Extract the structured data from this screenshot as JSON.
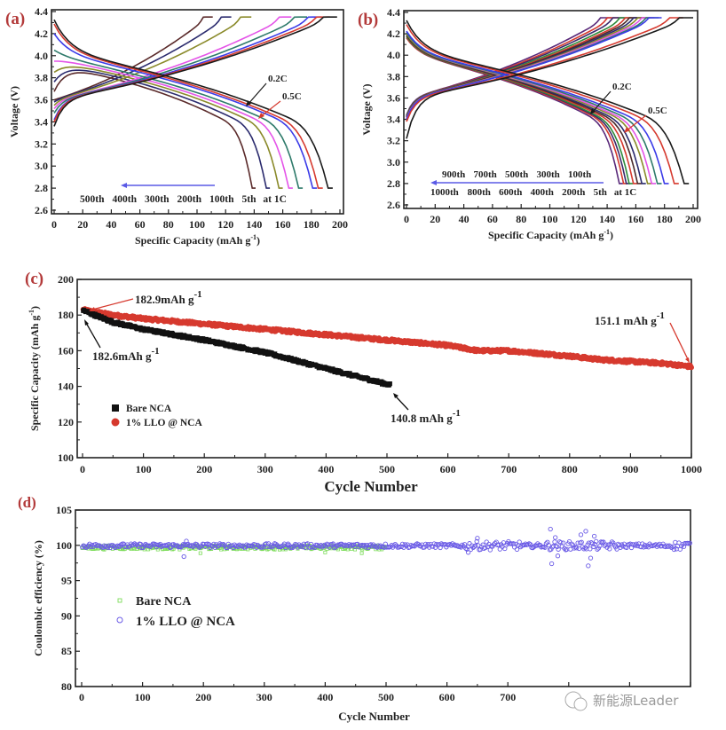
{
  "chart_data": [
    {
      "id": "a",
      "panel_label": "(a)",
      "type": "line",
      "xlabel": "Specific Capacity (mAh g",
      "xlabel_sup": "-1",
      "xlabel_end": ")",
      "ylabel": "Voltage (V)",
      "xlim": [
        0,
        200
      ],
      "ylim": [
        2.6,
        4.4
      ],
      "xticks": [
        0,
        20,
        40,
        60,
        80,
        100,
        120,
        140,
        160,
        180,
        200
      ],
      "yticks": [
        2.6,
        2.8,
        3.0,
        3.2,
        3.4,
        3.6,
        3.8,
        4.0,
        4.2,
        4.4
      ],
      "series": [
        {
          "name": "0.2C",
          "color": "#1a1a1a",
          "discharge_capacity": 195,
          "charge_capacity": 195,
          "charge_start_v": 3.36,
          "discharge_start_v": 4.32
        },
        {
          "name": "0.5C",
          "color": "#d63a2f",
          "discharge_capacity": 188,
          "charge_capacity": 190,
          "charge_start_v": 3.4,
          "discharge_start_v": 4.29
        },
        {
          "name": "5th at 1C",
          "color": "#3b3be8",
          "discharge_capacity": 184,
          "charge_capacity": 184,
          "charge_start_v": 3.42,
          "discharge_start_v": 4.22
        },
        {
          "name": "100th",
          "color": "#2e7a6a",
          "discharge_capacity": 174,
          "charge_capacity": 174,
          "charge_start_v": 3.48,
          "discharge_start_v": 4.1
        },
        {
          "name": "200th",
          "color": "#e454e8",
          "discharge_capacity": 167,
          "charge_capacity": 163,
          "charge_start_v": 3.52,
          "discharge_start_v": 4.02
        },
        {
          "name": "300th",
          "color": "#8a8a2a",
          "discharge_capacity": 160,
          "charge_capacity": 135,
          "charge_start_v": 3.55,
          "discharge_start_v": 3.94
        },
        {
          "name": "400th",
          "color": "#2b2b6e",
          "discharge_capacity": 151,
          "charge_capacity": 121,
          "charge_start_v": 3.58,
          "discharge_start_v": 3.87
        },
        {
          "name": "500th",
          "color": "#5a2a2a",
          "discharge_capacity": 141,
          "charge_capacity": 108,
          "charge_start_v": 3.6,
          "discharge_start_v": 3.8
        }
      ],
      "annotations": [
        {
          "text": "0.2C",
          "color": "#1a1a1a"
        },
        {
          "text": "0.5C",
          "color": "#d63a2f"
        }
      ],
      "legend_rows": [
        [
          {
            "text": "500th",
            "color": "#5a2a2a"
          },
          {
            "text": "400th",
            "color": "#2b2b6e"
          },
          {
            "text": "300th",
            "color": "#8a8a2a"
          },
          {
            "text": "200th",
            "color": "#e454e8"
          },
          {
            "text": "100th",
            "color": "#2e7a6a"
          },
          {
            "text": "5th",
            "color": "#3b3be8"
          },
          {
            "text": "at 1C",
            "color": "#2b2b6e"
          }
        ]
      ],
      "arrow_color": "#5a5ae6"
    },
    {
      "id": "b",
      "panel_label": "(b)",
      "type": "line",
      "xlabel": "Specific Capacity (mAh g",
      "xlabel_sup": "-1",
      "xlabel_end": ")",
      "ylabel": "Voltage (V)",
      "xlim": [
        0,
        200
      ],
      "ylim": [
        2.6,
        4.4
      ],
      "xticks": [
        0,
        20,
        40,
        60,
        80,
        100,
        120,
        140,
        160,
        180,
        200
      ],
      "yticks": [
        2.6,
        2.8,
        3.0,
        3.2,
        3.4,
        3.6,
        3.8,
        4.0,
        4.2,
        4.4
      ],
      "series": [
        {
          "name": "0.2C",
          "color": "#1a1a1a",
          "discharge_capacity": 197,
          "charge_capacity": 197,
          "charge_start_v": 3.22,
          "discharge_start_v": 4.32
        },
        {
          "name": "0.5C",
          "color": "#d63a2f",
          "discharge_capacity": 190,
          "charge_capacity": 190,
          "charge_start_v": 3.38,
          "discharge_start_v": 4.29
        },
        {
          "name": "5th at 1C",
          "color": "#3b3be8",
          "discharge_capacity": 183,
          "charge_capacity": 175,
          "charge_start_v": 3.4,
          "discharge_start_v": 4.24
        },
        {
          "name": "100th",
          "color": "#2e7a6a",
          "discharge_capacity": 178,
          "charge_capacity": 173,
          "charge_start_v": 3.4,
          "discharge_start_v": 4.23
        },
        {
          "name": "200th",
          "color": "#e454e8",
          "discharge_capacity": 174,
          "charge_capacity": 170,
          "charge_start_v": 3.41,
          "discharge_start_v": 4.23
        },
        {
          "name": "300th",
          "color": "#8a8a2a",
          "discharge_capacity": 171,
          "charge_capacity": 167,
          "charge_start_v": 3.41,
          "discharge_start_v": 4.22
        },
        {
          "name": "400th",
          "color": "#2b2b6e",
          "discharge_capacity": 167,
          "charge_capacity": 164,
          "charge_start_v": 3.42,
          "discharge_start_v": 4.22
        },
        {
          "name": "500th",
          "color": "#4a2a2a",
          "discharge_capacity": 164,
          "charge_capacity": 161,
          "charge_start_v": 3.42,
          "discharge_start_v": 4.21
        },
        {
          "name": "600th",
          "color": "#d63a2f",
          "discharge_capacity": 161,
          "charge_capacity": 158,
          "charge_start_v": 3.42,
          "discharge_start_v": 4.21
        },
        {
          "name": "700th",
          "color": "#2e8a3a",
          "discharge_capacity": 158,
          "charge_capacity": 154,
          "charge_start_v": 3.43,
          "discharge_start_v": 4.2
        },
        {
          "name": "800th",
          "color": "#3a2a6a",
          "discharge_capacity": 156,
          "charge_capacity": 149,
          "charge_start_v": 3.43,
          "discharge_start_v": 4.2
        },
        {
          "name": "900th",
          "color": "#d63a2f",
          "discharge_capacity": 154,
          "charge_capacity": 145,
          "charge_start_v": 3.43,
          "discharge_start_v": 4.19
        },
        {
          "name": "1000th",
          "color": "#5a2a7a",
          "discharge_capacity": 151,
          "charge_capacity": 140,
          "charge_start_v": 3.44,
          "discharge_start_v": 4.19
        }
      ],
      "annotations": [
        {
          "text": "0.2C",
          "color": "#1a1a1a"
        },
        {
          "text": "0.5C",
          "color": "#d63a2f"
        }
      ],
      "legend_rows": [
        [
          {
            "text": "900th",
            "color": "#d63a2f"
          },
          {
            "text": "700th",
            "color": "#2e8a3a"
          },
          {
            "text": "500th",
            "color": "#4a2a2a"
          },
          {
            "text": "300th",
            "color": "#8a8a2a"
          },
          {
            "text": "100th",
            "color": "#2e7a6a"
          }
        ],
        [
          {
            "text": "1000th",
            "color": "#5a2a7a"
          },
          {
            "text": "800th",
            "color": "#3a2a6a"
          },
          {
            "text": "600th",
            "color": "#d63a2f"
          },
          {
            "text": "400th",
            "color": "#2b2b6e"
          },
          {
            "text": "200th",
            "color": "#e454e8"
          },
          {
            "text": "5th",
            "color": "#3b3be8"
          },
          {
            "text": "at 1C",
            "color": "#2b2b6e"
          }
        ]
      ],
      "arrow_color": "#5a5ae6"
    },
    {
      "id": "c",
      "panel_label": "(c)",
      "type": "scatter",
      "xlabel": "Cycle Number",
      "ylabel": "Specific Capacity (mAh g",
      "ylabel_sup": "-1",
      "ylabel_end": ")",
      "xlim": [
        0,
        1000
      ],
      "ylim": [
        100,
        200
      ],
      "xticks": [
        0,
        100,
        200,
        300,
        400,
        500,
        600,
        700,
        800,
        900,
        1000
      ],
      "yticks": [
        100,
        120,
        140,
        160,
        180,
        200
      ],
      "series": [
        {
          "name": "Bare NCA",
          "color": "#111111",
          "marker": "square",
          "keypoints": [
            [
              1,
              182.6
            ],
            [
              50,
              176
            ],
            [
              100,
              172
            ],
            [
              200,
              166
            ],
            [
              300,
              159
            ],
            [
              400,
              150
            ],
            [
              505,
              140.8
            ]
          ]
        },
        {
          "name": "1% LLO @ NCA",
          "color": "#d6392e",
          "marker": "circle",
          "keypoints": [
            [
              1,
              182.9
            ],
            [
              50,
              180
            ],
            [
              100,
              178
            ],
            [
              200,
              175
            ],
            [
              300,
              172
            ],
            [
              400,
              169
            ],
            [
              500,
              166
            ],
            [
              600,
              163
            ],
            [
              650,
              160
            ],
            [
              700,
              160
            ],
            [
              800,
              157
            ],
            [
              850,
              155
            ],
            [
              900,
              154
            ],
            [
              950,
              153
            ],
            [
              1000,
              151.1
            ]
          ]
        }
      ],
      "annotations": [
        {
          "text": "182.9mAh g",
          "sup": "-1",
          "color": "#d6392e"
        },
        {
          "text": "182.6mAh g",
          "sup": "-1",
          "color": "#111111"
        },
        {
          "text": "140.8 mAh g",
          "sup": "-1",
          "color": "#111111"
        },
        {
          "text": "151.1 mAh g",
          "sup": "-1",
          "color": "#d6392e"
        }
      ],
      "legend": "left-middle"
    },
    {
      "id": "d",
      "panel_label": "(d)",
      "type": "scatter",
      "xlabel": "Cycle Number",
      "ylabel": "Coulombic efficiency (%)",
      "xlim": [
        0,
        1000
      ],
      "ylim": [
        80,
        105
      ],
      "xticks": [
        0,
        100,
        200,
        300,
        400,
        500,
        600,
        700
      ],
      "yticks": [
        80,
        85,
        90,
        95,
        100,
        105
      ],
      "series": [
        {
          "name": "Bare NCA",
          "color": "#7ddc5a",
          "marker": "open-square",
          "x_range": [
            1,
            500
          ],
          "mean": 99.7,
          "spread": 0.3,
          "outliers": [
            [
              195,
              98.9
            ],
            [
              400,
              99.0
            ],
            [
              460,
              98.9
            ]
          ]
        },
        {
          "name": "1% LLO @ NCA",
          "color": "#6a5ae6",
          "marker": "open-circle",
          "x_range": [
            1,
            1000
          ],
          "mean": 99.95,
          "spread": 0.3,
          "outliers": [
            [
              168,
              98.4
            ],
            [
              172,
              100.6
            ],
            [
              650,
              101.0
            ],
            [
              635,
              99.0
            ],
            [
              770,
              102.3
            ],
            [
              772,
              97.4
            ],
            [
              778,
              101.1
            ],
            [
              782,
              98.5
            ],
            [
              820,
              101.5
            ],
            [
              828,
              102.0
            ],
            [
              832,
              97.1
            ],
            [
              836,
              98.2
            ],
            [
              842,
              101.3
            ]
          ]
        }
      ],
      "legend": "left-middle"
    }
  ],
  "watermark": {
    "text": "新能源Leader"
  }
}
